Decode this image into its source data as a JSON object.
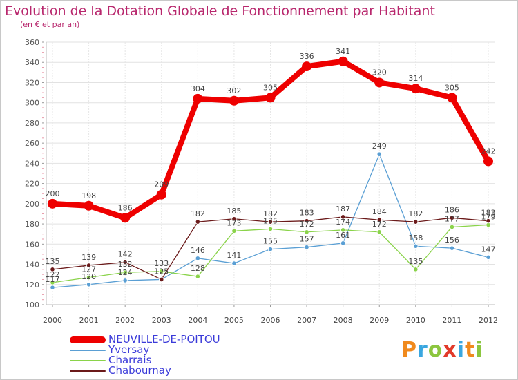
{
  "title": "Evolution de la Dotation Globale de Fonctionnement par Habitant",
  "subtitle": "(en € et par an)",
  "logo": {
    "text": "Proxiti",
    "letters": [
      "P",
      "r",
      "o",
      "x",
      "i",
      "t",
      "i"
    ],
    "letter_colors": [
      "#f08a1e",
      "#3aa7e0",
      "#8cc63f",
      "#e23a2a",
      "#3aa7e0",
      "#f08a1e",
      "#8cc63f"
    ]
  },
  "chart_data": {
    "type": "line",
    "title": "Evolution de la Dotation Globale de Fonctionnement par Habitant",
    "subtitle": "(en € et par an)",
    "x": [
      "2000",
      "2001",
      "2002",
      "2003",
      "2004",
      "2005",
      "2006",
      "2007",
      "2008",
      "2009",
      "2010",
      "2011",
      "2012"
    ],
    "ylim": [
      100,
      360
    ],
    "yticks": [
      "100",
      "120",
      "140",
      "160",
      "180",
      "200",
      "220",
      "240",
      "260",
      "280",
      "300",
      "320",
      "340",
      "360"
    ],
    "grid": true,
    "legend_position": "bottom-left",
    "series": [
      {
        "name": "NEUVILLE-DE-POITOU",
        "color": "#ee0000",
        "values": [
          200,
          198,
          186,
          209,
          304,
          302,
          305,
          336,
          341,
          320,
          314,
          305,
          242
        ],
        "labels": [
          "200",
          "198",
          "186",
          "209",
          "304",
          "302",
          "305",
          "336",
          "341",
          "320",
          "314",
          "305",
          "242"
        ]
      },
      {
        "name": "Yversay",
        "color": "#5a9fd4",
        "values": [
          117,
          120,
          124,
          125,
          146,
          141,
          155,
          157,
          161,
          249,
          158,
          156,
          147
        ],
        "labels": [
          "117",
          "120",
          "124",
          "125",
          "146",
          "141",
          "155",
          "157",
          "161",
          "249",
          "158",
          "156",
          "147"
        ]
      },
      {
        "name": "Charrais",
        "color": "#8ad34a",
        "values": [
          122,
          127,
          132,
          133,
          128,
          173,
          175,
          172,
          174,
          172,
          135,
          177,
          179
        ],
        "labels": [
          "122",
          "127",
          "132",
          "133",
          "128",
          "173",
          "175",
          "172",
          "174",
          "172",
          "135",
          "177",
          "179"
        ]
      },
      {
        "name": "Chabournay",
        "color": "#6b1a1a",
        "values": [
          135,
          139,
          142,
          125,
          182,
          185,
          182,
          183,
          187,
          184,
          182,
          186,
          183
        ],
        "labels": [
          "135",
          "139",
          "142",
          "125",
          "182",
          "185",
          "182",
          "183",
          "187",
          "184",
          "182",
          "186",
          "183"
        ]
      }
    ]
  }
}
